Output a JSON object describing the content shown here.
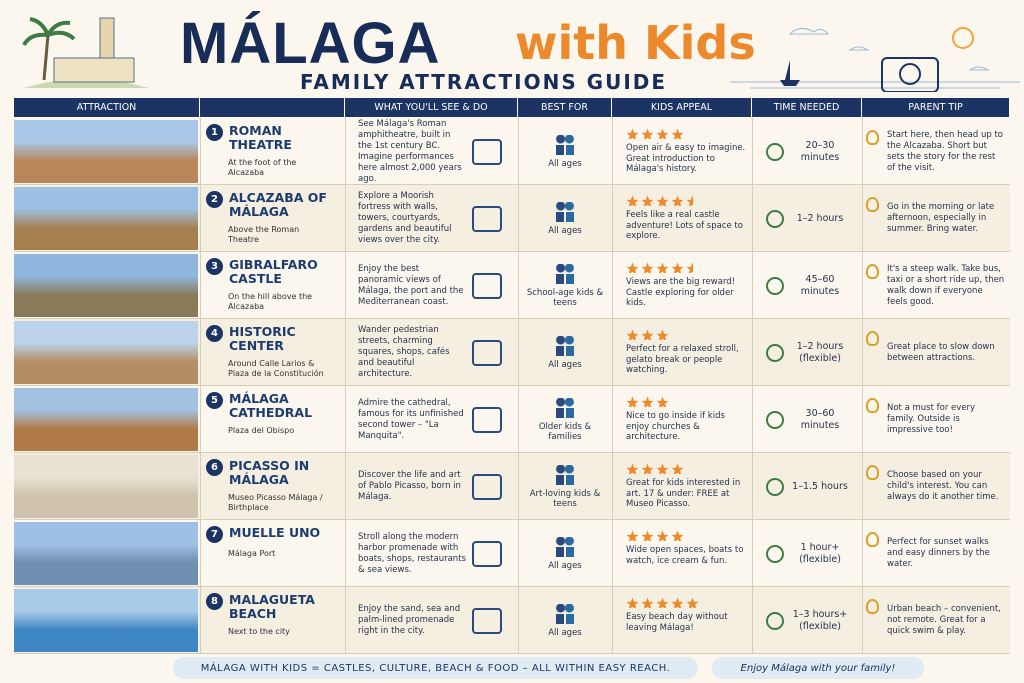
{
  "header": {
    "title": "MÁLAGA",
    "title_accent": "with Kids",
    "subtitle": "FAMILY ATTRACTIONS GUIDE"
  },
  "table": {
    "columns": [
      "ATTRACTION",
      "WHAT YOU'LL SEE & DO",
      "BEST FOR",
      "KIDS APPEAL",
      "TIME NEEDED",
      "PARENT TIP"
    ],
    "rows": [
      {
        "number": 1,
        "name": "ROMAN THEATRE",
        "location": "At the foot of the Alcazaba",
        "description": "See Málaga's Roman amphitheatre, built in the 1st century BC. Imagine performances here almost 2,000 years ago.",
        "best_for": "All ages",
        "rating": 4,
        "appeal": "Open air & easy to imagine. Great introduction to Málaga's history.",
        "time": "20–30 minutes",
        "tip": "Start here, then head up to the Alcazaba. Short but sets the story for the rest of the visit."
      },
      {
        "number": 2,
        "name": "ALCAZABA OF MÁLAGA",
        "location": "Above the Roman Theatre",
        "description": "Explore a Moorish fortress with walls, towers, courtyards, gardens and beautiful views over the city.",
        "best_for": "All ages",
        "rating": 4.5,
        "appeal": "Feels like a real castle adventure! Lots of space to explore.",
        "time": "1–2 hours",
        "tip": "Go in the morning or late afternoon, especially in summer. Bring water."
      },
      {
        "number": 3,
        "name": "GIBRALFARO CASTLE",
        "location": "On the hill above the Alcazaba",
        "description": "Enjoy the best panoramic views of Málaga, the port and the Mediterranean coast.",
        "best_for": "School-age kids & teens",
        "rating": 4.5,
        "appeal": "Views are the big reward! Castle exploring for older kids.",
        "time": "45–60 minutes",
        "tip": "It's a steep walk. Take bus, taxi or a short ride up, then walk down if everyone feels good."
      },
      {
        "number": 4,
        "name": "HISTORIC CENTER",
        "location": "Around Calle Larios & Plaza de la Constitución",
        "description": "Wander pedestrian streets, charming squares, shops, cafés and beautiful architecture.",
        "best_for": "All ages",
        "rating": 3,
        "appeal": "Perfect for a relaxed stroll, gelato break or people watching.",
        "time": "1–2 hours (flexible)",
        "tip": "Great place to slow down between attractions."
      },
      {
        "number": 5,
        "name": "MÁLAGA CATHEDRAL",
        "location": "Plaza del Obispo",
        "description": "Admire the cathedral, famous for its unfinished second tower – \"La Manquita\".",
        "best_for": "Older kids & families",
        "rating": 3,
        "appeal": "Nice to go inside if kids enjoy churches & architecture.",
        "time": "30–60 minutes",
        "tip": "Not a must for every family. Outside is impressive too!"
      },
      {
        "number": 6,
        "name": "PICASSO IN MÁLAGA",
        "location": "Museo Picasso Málaga / Birthplace",
        "description": "Discover the life and art of Pablo Picasso, born in Málaga.",
        "best_for": "Art-loving kids & teens",
        "rating": 4,
        "appeal": "Great for kids interested in art. 17 & under: FREE at Museo Picasso.",
        "time": "1–1.5 hours",
        "tip": "Choose based on your child's interest. You can always do it another time."
      },
      {
        "number": 7,
        "name": "MUELLE UNO",
        "location": "Málaga Port",
        "description": "Stroll along the modern harbor promenade with boats, shops, restaurants & sea views.",
        "best_for": "All ages",
        "rating": 4,
        "appeal": "Wide open spaces, boats to watch, ice cream & fun.",
        "time": "1 hour+ (flexible)",
        "tip": "Perfect for sunset walks and easy dinners by the water."
      },
      {
        "number": 8,
        "name": "MALAGUETA BEACH",
        "location": "Next to the city",
        "description": "Enjoy the sand, sea and palm-lined promenade right in the city.",
        "best_for": "All ages",
        "rating": 5,
        "appeal": "Easy beach day without leaving Málaga!",
        "time": "1–3 hours+ (flexible)",
        "tip": "Urban beach – convenient, not remote. Great for a quick swim & play."
      }
    ]
  },
  "footer": {
    "summary": "MÁLAGA WITH KIDS = CASTLES, CULTURE, BEACH & FOOD – ALL WITHIN EASY REACH.",
    "message": "Enjoy Málaga with your family!"
  }
}
